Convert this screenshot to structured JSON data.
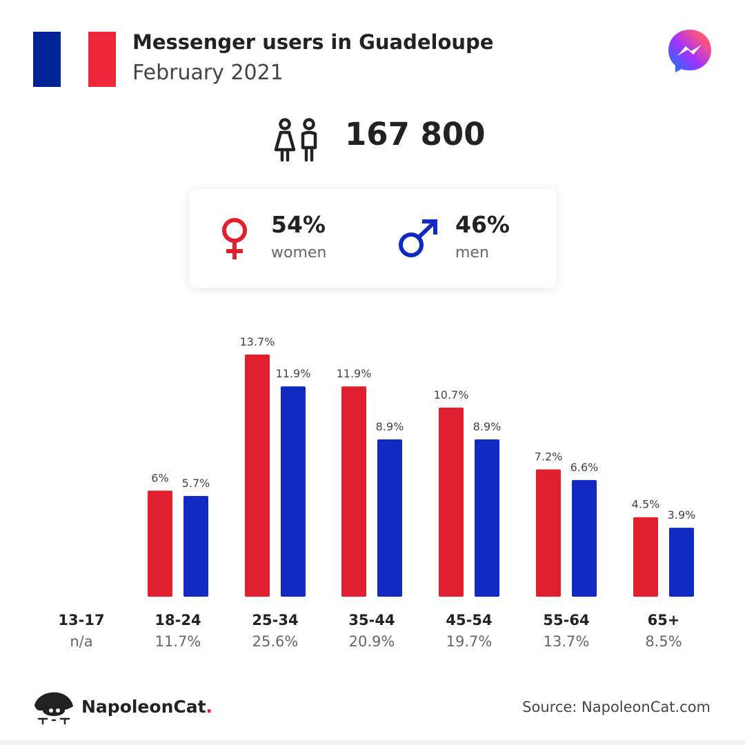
{
  "header": {
    "title": "Messenger users in Guadeloupe",
    "subtitle": "February 2021",
    "flag_colors": [
      "#002395",
      "#ffffff",
      "#ed2939"
    ],
    "logo_icon": "messenger-logo-icon"
  },
  "summary": {
    "total": "167 800",
    "icon": "people-icon",
    "women": {
      "pct": "54%",
      "label": "women",
      "color": "#e0202c",
      "icon": "female-symbol-icon"
    },
    "men": {
      "pct": "46%",
      "label": "men",
      "color": "#0f2ac1",
      "icon": "male-symbol-icon"
    }
  },
  "chart_data": {
    "type": "bar",
    "categories": [
      "13-17",
      "18-24",
      "25-34",
      "35-44",
      "45-54",
      "55-64",
      "65+"
    ],
    "category_totals": [
      "n/a",
      "11.7%",
      "25.6%",
      "20.9%",
      "19.7%",
      "13.7%",
      "8.5%"
    ],
    "series": [
      {
        "name": "women",
        "color": "#e0202c",
        "values": [
          null,
          6,
          13.7,
          11.9,
          10.7,
          7.2,
          4.5
        ],
        "labels": [
          "",
          "6%",
          "13.7%",
          "11.9%",
          "10.7%",
          "7.2%",
          "4.5%"
        ]
      },
      {
        "name": "men",
        "color": "#0f2ac1",
        "values": [
          null,
          5.7,
          11.9,
          8.9,
          8.9,
          6.6,
          3.9
        ],
        "labels": [
          "",
          "5.7%",
          "11.9%",
          "8.9%",
          "8.9%",
          "6.6%",
          "3.9%"
        ]
      }
    ],
    "ylim": [
      0,
      13.7
    ],
    "grid": false
  },
  "footer": {
    "brand": "NapoleonCat",
    "brand_dot": ".",
    "brand_icon": "napoleoncat-logo-icon",
    "source": "Source: NapoleonCat.com"
  }
}
